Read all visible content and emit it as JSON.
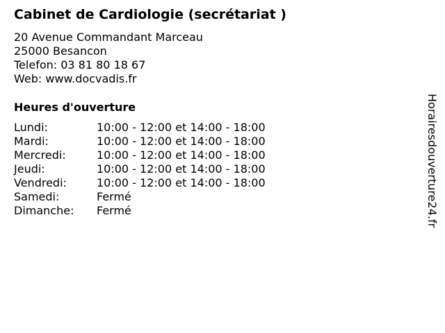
{
  "title": "Cabinet de Cardiologie (secrétariat )",
  "address": [
    "20 Avenue Commandant Marceau",
    "25000 Besancon",
    "Telefon: 03 81 80 18 67",
    "Web: www.docvadis.fr"
  ],
  "hours_heading": "Heures d'ouverture",
  "hours": [
    {
      "day": "Lundi:",
      "time": "10:00 - 12:00 et 14:00 - 18:00"
    },
    {
      "day": "Mardi:",
      "time": "10:00 - 12:00 et 14:00 - 18:00"
    },
    {
      "day": "Mercredi:",
      "time": "10:00 - 12:00 et 14:00 - 18:00"
    },
    {
      "day": "Jeudi:",
      "time": "10:00 - 12:00 et 14:00 - 18:00"
    },
    {
      "day": "Vendredi:",
      "time": "10:00 - 12:00 et 14:00 - 18:00"
    },
    {
      "day": "Samedi:",
      "time": "Fermé"
    },
    {
      "day": "Dimanche:",
      "time": "Fermé"
    }
  ],
  "watermark": "Horairesdouverture24.fr"
}
